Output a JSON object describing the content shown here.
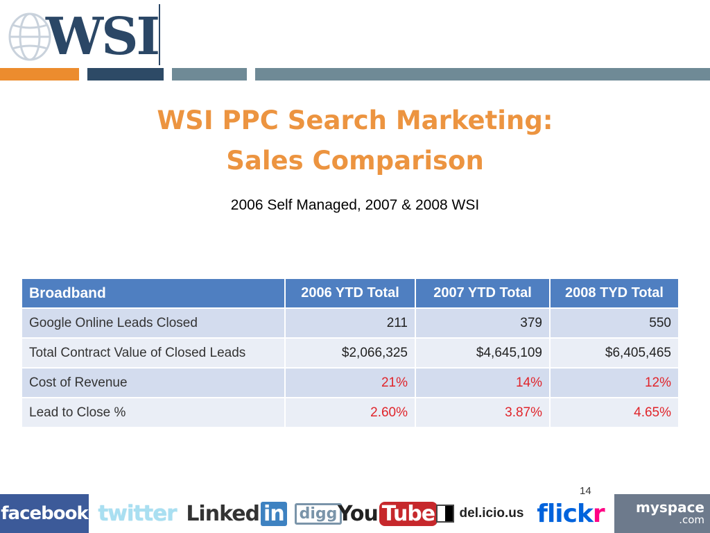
{
  "logo": {
    "text": "WSI"
  },
  "header": {
    "title_line1": "WSI PPC Search Marketing:",
    "title_line2": "Sales Comparison",
    "subtitle": "2006 Self Managed, 2007 & 2008 WSI"
  },
  "table": {
    "headers": [
      "Broadband",
      "2006 YTD Total",
      "2007 YTD Total",
      "2008 TYD Total"
    ],
    "rows": [
      {
        "label": "Google Online  Leads Closed",
        "values": [
          "211",
          "379",
          "550"
        ]
      },
      {
        "label": "Total Contract Value of Closed Leads",
        "values": [
          "$2,066,325",
          "$4,645,109",
          "$6,405,465"
        ]
      },
      {
        "label": "Cost of Revenue",
        "values": [
          "21%",
          "14%",
          "12%"
        ]
      },
      {
        "label": "Lead to Close %",
        "values": [
          "2.60%",
          "3.87%",
          "4.65%"
        ]
      }
    ]
  },
  "page_number": "14",
  "social_logos": {
    "facebook": "facebook",
    "twitter": "twitter",
    "linkedin_a": "Linked",
    "linkedin_b": "in",
    "digg": "digg",
    "youtube_a": "You",
    "youtube_b": "Tube",
    "delicious": "del.icio.us",
    "flickr_a": "flick",
    "flickr_b": "r",
    "myspace_a": "myspace",
    "myspace_b": ".com"
  },
  "colors": {
    "accent_orange": "#ec9440",
    "navy": "#2d4a66",
    "slate": "#6f8a96",
    "table_header": "#4f7fc1",
    "highlight_red": "#e0242a"
  }
}
